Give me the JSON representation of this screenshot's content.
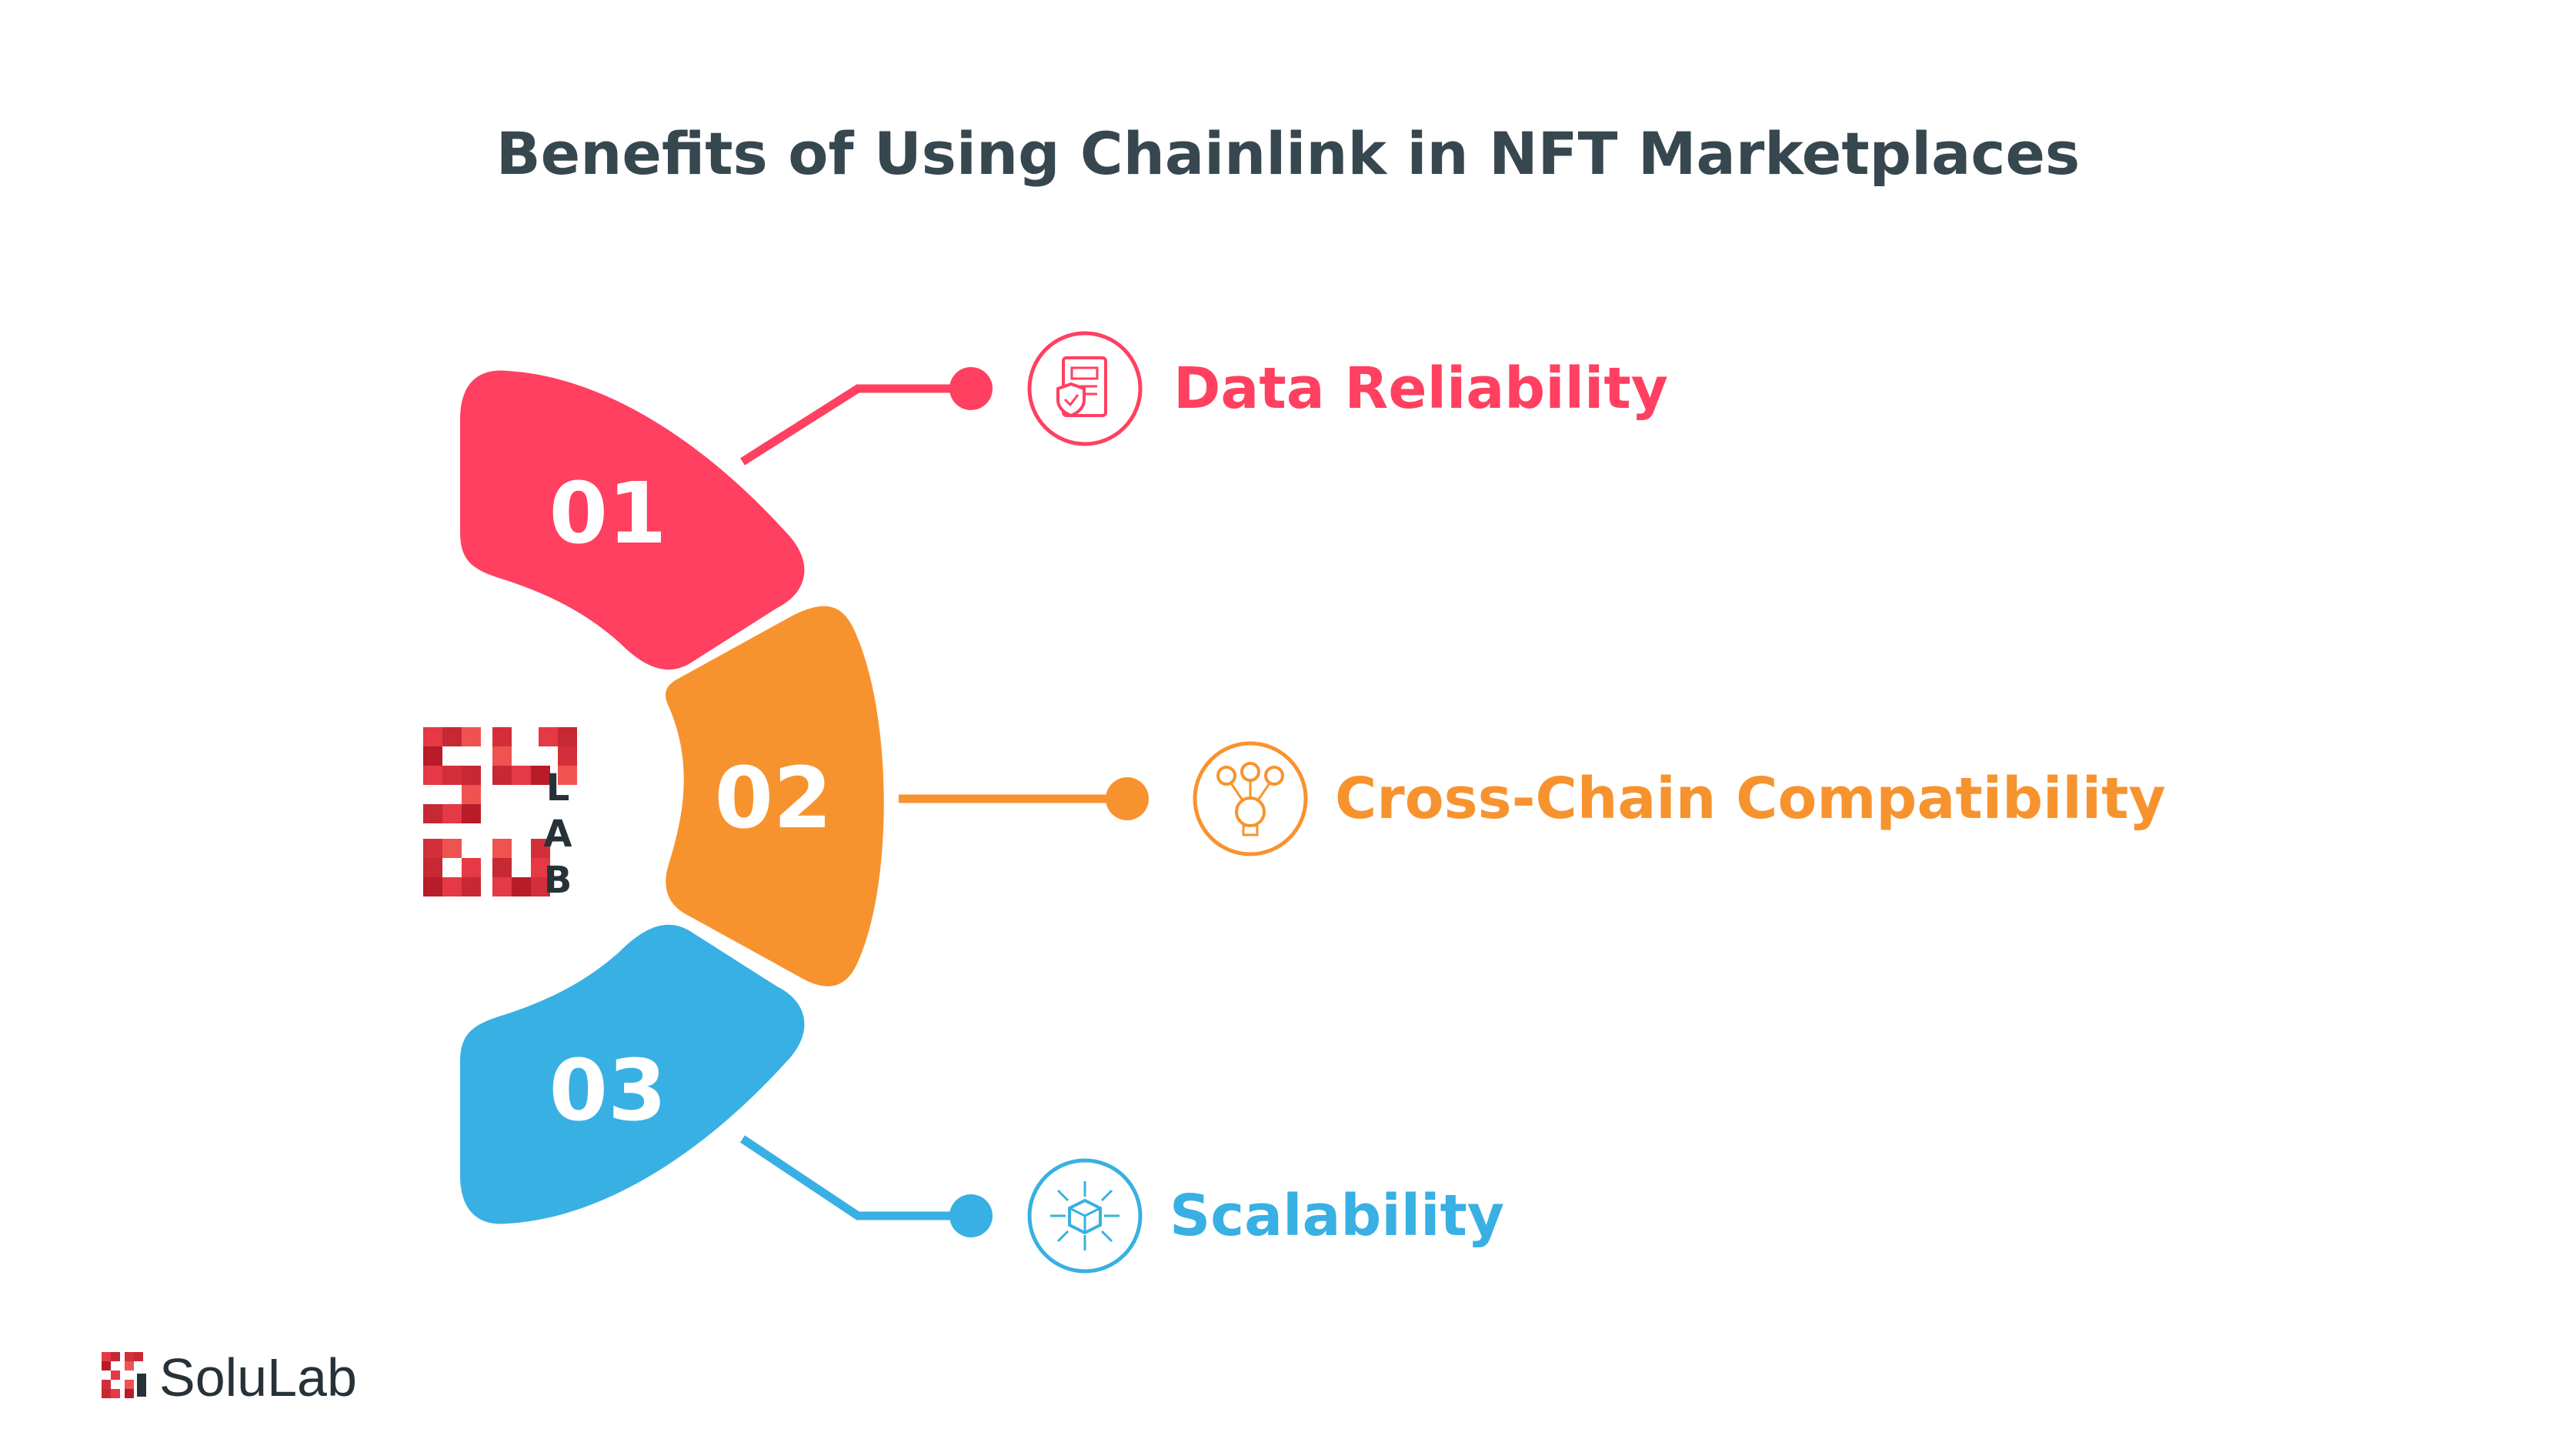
{
  "title": "Benefits of Using Chainlink in NFT Marketplaces",
  "colors": {
    "red": "#ff4060",
    "orange": "#f7932f",
    "blue": "#38b0e3",
    "dark": "#263238"
  },
  "steps": [
    {
      "number": "01",
      "label": "Data Reliability",
      "color": "#ff4060",
      "icon": "report-shield-icon"
    },
    {
      "number": "02",
      "label": "Cross-Chain Compatibility",
      "color": "#f7932f",
      "icon": "idea-network-icon"
    },
    {
      "number": "03",
      "label": "Scalability",
      "color": "#38b0e3",
      "icon": "cube-expand-icon"
    }
  ],
  "center_logo": {
    "letters": [
      "L",
      "A",
      "B"
    ]
  },
  "footer": {
    "brand": "SoluLab"
  }
}
